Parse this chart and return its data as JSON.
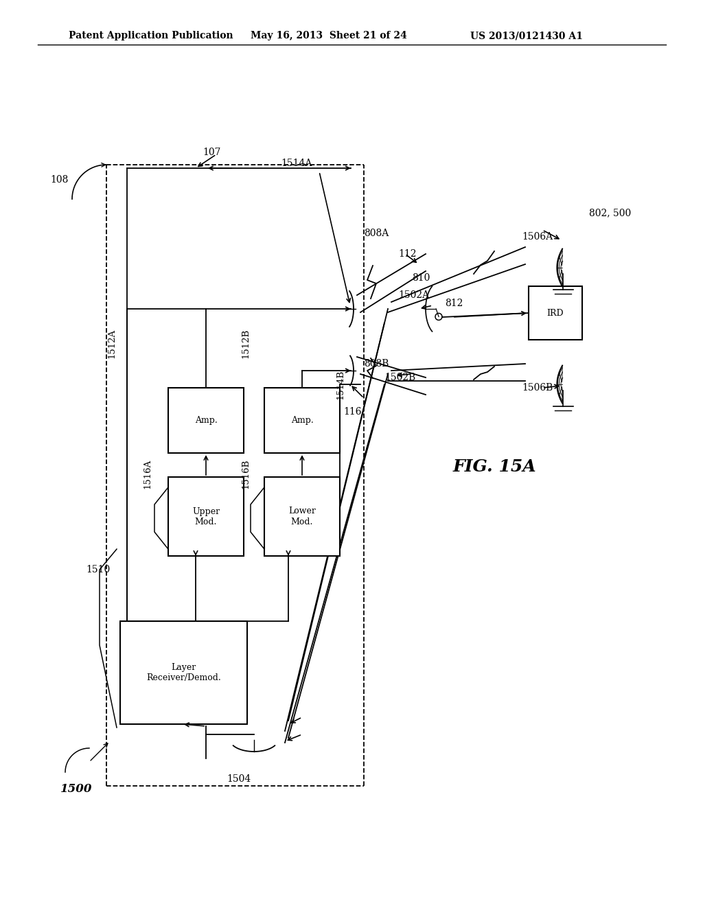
{
  "title_left": "Patent Application Publication",
  "title_mid": "May 16, 2013  Sheet 21 of 24",
  "title_right": "US 2013/0121430 A1",
  "bg_color": "#ffffff",
  "line_color": "#000000",
  "fig_label": "FIG. 15A"
}
